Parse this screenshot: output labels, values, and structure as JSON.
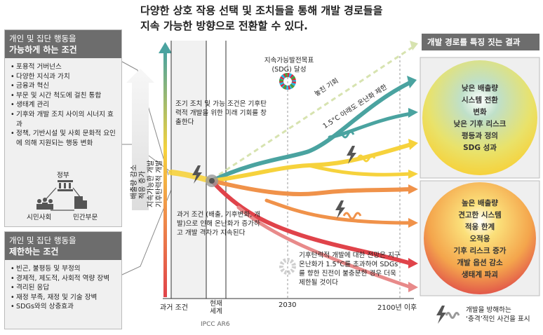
{
  "title": {
    "line1": "다양한 상호 작용 선택 및 조치들을 통해 개발 경로들을",
    "line2": "지속 가능한 방향으로 전환할 수 있다."
  },
  "enabling": {
    "head_line1": "개인 및 집단 행동을",
    "head_line2": "가능하게 하는 조건",
    "items": [
      "포용적 거버넌스",
      "다양한 지식과 가치",
      "금융과 혁신",
      "부문 및 시간 척도에 걸친 통합",
      "생태계 관리",
      "기후와 개발 조치 사이의 시너지 효과",
      "정책, 기반시설 및 사회 문화적 요인에 의해 지원되는 행동 변화"
    ],
    "actors": {
      "top": "정부",
      "left": "시민사회",
      "right": "민간부문"
    }
  },
  "constraining": {
    "head_line1": "개인 및 집단 행동을",
    "head_line2": "제한하는 조건",
    "items": [
      "빈곤, 불평등 및 부정의",
      "경제적, 제도적, 사회적 역량 장벽",
      "격리된 응답",
      "재정 부족, 재정 및 기술 장벽",
      "SDGs와의 상충효과"
    ]
  },
  "arrow_labels": {
    "line1": "배출량 감소",
    "line2": "적응 증가",
    "line3": "지속가능한 개발",
    "line4": "기후탄력적 개발"
  },
  "annotations": {
    "opportunity": "조기 조치 및 가능 조건은 기후탄력적 개발을 위한 미래 기회를 창출한다",
    "past": "과거 조건 (배출, 기후변화, 개발)으로 인해 온난화가 증가하고 개발 격차가 지속된다",
    "future": "기후탄력적 개발에 대한 전망은 지구온난화가 1.5°C를 초과하여 SDGs를 향한 진전이 불충분한 경우 더욱 제한될 것이다",
    "missed": "놓친 기회",
    "limit": "1.5°C 아래도 온난화 제한",
    "sdg": "지속가능발전목표 (SDG) 달성"
  },
  "axis": {
    "past": "과거 조건",
    "present": "현재 세계",
    "year2030": "2030",
    "year2100": "2100년 이후",
    "source": "IPCC AR6"
  },
  "results": {
    "head": "개발 경로를 특징 짓는 결과",
    "good": [
      "낮은 배출량",
      "시스템 전환",
      "변화",
      "낮은 기후 리스크",
      "평등과 정의",
      "SDG 성과"
    ],
    "bad": [
      "높은 배출량",
      "견고한 시스템",
      "적응 한계",
      "오적응",
      "기후 리스크 증가",
      "개발 옵션 감소",
      "생태계 파괴"
    ]
  },
  "legend": {
    "line1": "개발을 방해하는",
    "line2": "‘충격’적인 사건을 표시"
  },
  "colors": {
    "teal": "#4aa3a0",
    "yellow": "#f6d23c",
    "orange": "#f0924a",
    "red": "#e0434a",
    "panel_head": "#6d6d6d"
  }
}
